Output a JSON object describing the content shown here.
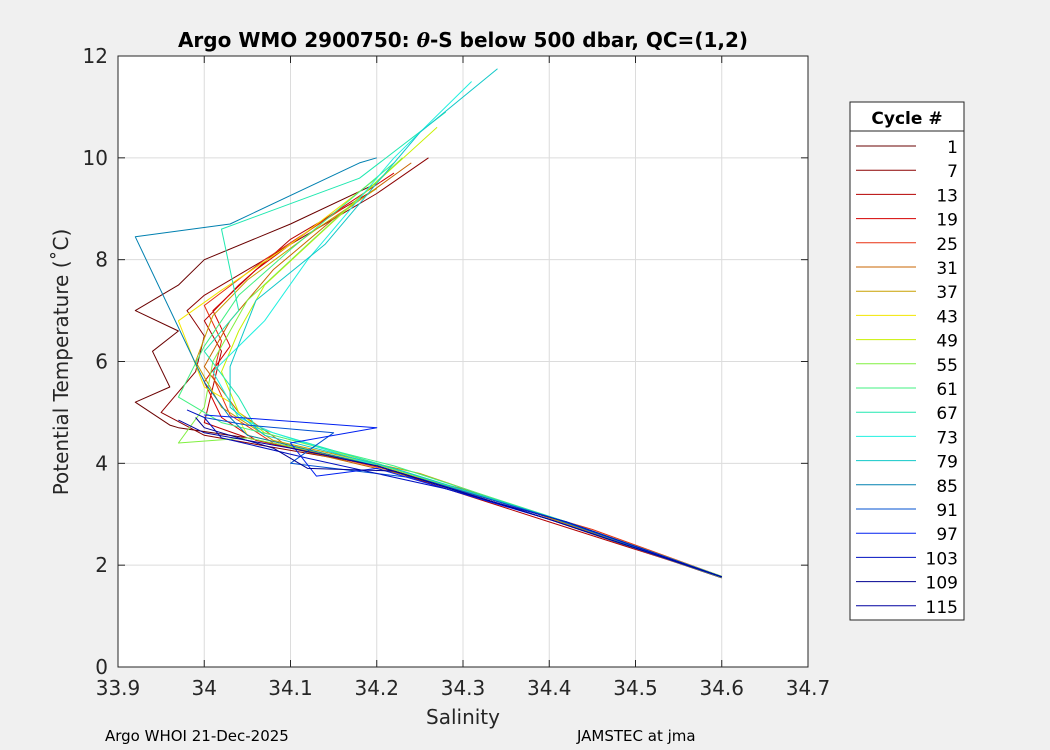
{
  "chart_data": {
    "type": "line",
    "title": "Argo WMO 2900750: θ-S below 500 dbar,  QC=(1,2)",
    "title_prefix": "Argo WMO 2900750: ",
    "title_theta": "θ",
    "title_suffix": "-S below 500 dbar,  QC=(1,2)",
    "xlabel": "Salinity",
    "ylabel": "Potential Temperature (˚C)",
    "xlim": [
      33.9,
      34.7
    ],
    "ylim": [
      0,
      12
    ],
    "xticks": [
      33.9,
      34,
      34.1,
      34.2,
      34.3,
      34.4,
      34.5,
      34.6,
      34.7
    ],
    "xtick_labels": [
      "33.9",
      "34",
      "34.1",
      "34.2",
      "34.3",
      "34.4",
      "34.5",
      "34.6",
      "34.7"
    ],
    "yticks": [
      0,
      2,
      4,
      6,
      8,
      10,
      12
    ],
    "ytick_labels": [
      "0",
      "2",
      "4",
      "6",
      "8",
      "10",
      "12"
    ],
    "grid": true,
    "legend_title": "Cycle #",
    "legend_position": "right-outside",
    "series": [
      {
        "name": "1",
        "color": "#6a0000"
      },
      {
        "name": "7",
        "color": "#8c0000"
      },
      {
        "name": "13",
        "color": "#b50000"
      },
      {
        "name": "19",
        "color": "#d40000"
      },
      {
        "name": "25",
        "color": "#e83010"
      },
      {
        "name": "31",
        "color": "#c86400"
      },
      {
        "name": "37",
        "color": "#c8a000"
      },
      {
        "name": "43",
        "color": "#f2e600"
      },
      {
        "name": "49",
        "color": "#c8f000"
      },
      {
        "name": "55",
        "color": "#80f040"
      },
      {
        "name": "61",
        "color": "#40f080"
      },
      {
        "name": "67",
        "color": "#20e8b0"
      },
      {
        "name": "73",
        "color": "#20f0e0"
      },
      {
        "name": "79",
        "color": "#10c8c8"
      },
      {
        "name": "85",
        "color": "#0080b0"
      },
      {
        "name": "91",
        "color": "#0050d0"
      },
      {
        "name": "97",
        "color": "#0020f0"
      },
      {
        "name": "103",
        "color": "#0010c0"
      },
      {
        "name": "109",
        "color": "#000090"
      },
      {
        "name": "115",
        "color": "#0000a0"
      }
    ],
    "profiles": [
      {
        "series": "1",
        "points": [
          [
            34.6,
            1.75
          ],
          [
            34.4,
            2.9
          ],
          [
            34.2,
            3.95
          ],
          [
            34.05,
            4.5
          ],
          [
            33.97,
            4.7
          ],
          [
            33.96,
            4.75
          ],
          [
            33.92,
            5.2
          ],
          [
            33.96,
            5.5
          ],
          [
            33.94,
            6.2
          ],
          [
            33.97,
            6.6
          ],
          [
            33.92,
            7.0
          ],
          [
            33.97,
            7.5
          ],
          [
            34.0,
            8.0
          ],
          [
            34.1,
            8.7
          ],
          [
            34.2,
            9.5
          ]
        ]
      },
      {
        "series": "7",
        "points": [
          [
            34.6,
            1.76
          ],
          [
            34.4,
            2.9
          ],
          [
            34.2,
            3.96
          ],
          [
            34.0,
            4.55
          ],
          [
            33.95,
            5.0
          ],
          [
            33.99,
            5.8
          ],
          [
            34.0,
            6.5
          ],
          [
            33.98,
            7.0
          ],
          [
            34.0,
            7.3
          ],
          [
            34.05,
            7.8
          ],
          [
            34.12,
            8.5
          ],
          [
            34.2,
            9.3
          ],
          [
            34.26,
            10.0
          ]
        ]
      },
      {
        "series": "13",
        "points": [
          [
            34.6,
            1.77
          ],
          [
            34.4,
            2.85
          ],
          [
            34.2,
            3.94
          ],
          [
            34.05,
            4.5
          ],
          [
            34.0,
            4.8
          ],
          [
            34.01,
            5.5
          ],
          [
            34.02,
            6.2
          ],
          [
            34.0,
            6.8
          ],
          [
            34.04,
            7.5
          ],
          [
            34.1,
            8.4
          ],
          [
            34.2,
            9.4
          ]
        ]
      },
      {
        "series": "19",
        "points": [
          [
            34.6,
            1.77
          ],
          [
            34.42,
            2.85
          ],
          [
            34.2,
            3.95
          ],
          [
            34.06,
            4.45
          ],
          [
            34.02,
            4.9
          ],
          [
            34.0,
            5.6
          ],
          [
            34.03,
            6.3
          ],
          [
            34.01,
            7.0
          ],
          [
            34.06,
            7.8
          ],
          [
            34.14,
            8.8
          ],
          [
            34.22,
            9.7
          ]
        ]
      },
      {
        "series": "25",
        "points": [
          [
            34.6,
            1.78
          ],
          [
            34.45,
            2.7
          ],
          [
            34.22,
            3.85
          ],
          [
            34.08,
            4.4
          ],
          [
            34.03,
            4.95
          ],
          [
            34.01,
            5.7
          ],
          [
            34.02,
            6.4
          ],
          [
            34.0,
            7.1
          ],
          [
            34.07,
            8.0
          ],
          [
            34.16,
            9.0
          ]
        ]
      },
      {
        "series": "31",
        "points": [
          [
            34.6,
            1.76
          ],
          [
            34.5,
            2.35
          ],
          [
            34.3,
            3.5
          ],
          [
            34.1,
            4.3
          ],
          [
            34.04,
            5.0
          ],
          [
            34.0,
            5.9
          ],
          [
            34.03,
            6.8
          ],
          [
            34.08,
            7.8
          ],
          [
            34.15,
            8.8
          ],
          [
            34.24,
            9.9
          ]
        ]
      },
      {
        "series": "37",
        "points": [
          [
            34.6,
            1.78
          ],
          [
            34.45,
            2.65
          ],
          [
            34.25,
            3.8
          ],
          [
            34.08,
            4.45
          ],
          [
            34.02,
            5.1
          ],
          [
            33.99,
            6.0
          ],
          [
            34.01,
            6.9
          ],
          [
            34.05,
            7.6
          ],
          [
            34.13,
            8.6
          ],
          [
            34.2,
            9.4
          ]
        ]
      },
      {
        "series": "43",
        "points": [
          [
            34.6,
            1.77
          ],
          [
            34.4,
            2.9
          ],
          [
            34.2,
            3.95
          ],
          [
            34.05,
            4.55
          ],
          [
            34.03,
            5.2
          ],
          [
            34.0,
            5.5
          ],
          [
            33.97,
            6.8
          ],
          [
            34.02,
            7.4
          ],
          [
            34.1,
            8.3
          ],
          [
            34.2,
            9.6
          ]
        ]
      },
      {
        "series": "49",
        "points": [
          [
            34.6,
            1.76
          ],
          [
            34.4,
            2.95
          ],
          [
            34.2,
            4.0
          ],
          [
            34.07,
            4.6
          ],
          [
            34.04,
            5.0
          ],
          [
            34.02,
            5.8
          ],
          [
            34.04,
            6.6
          ],
          [
            34.07,
            7.5
          ],
          [
            34.14,
            8.6
          ],
          [
            34.27,
            10.6
          ]
        ]
      },
      {
        "series": "55",
        "points": [
          [
            34.6,
            1.77
          ],
          [
            34.4,
            2.95
          ],
          [
            34.2,
            3.98
          ],
          [
            34.05,
            4.5
          ],
          [
            33.97,
            4.4
          ],
          [
            34.0,
            5.1
          ],
          [
            34.01,
            6.0
          ],
          [
            34.05,
            7.2
          ],
          [
            34.12,
            8.3
          ],
          [
            34.23,
            10.0
          ]
        ]
      },
      {
        "series": "61",
        "points": [
          [
            34.6,
            1.78
          ],
          [
            34.42,
            2.85
          ],
          [
            34.22,
            3.95
          ],
          [
            34.08,
            4.55
          ],
          [
            34.02,
            4.8
          ],
          [
            33.97,
            5.3
          ],
          [
            34.0,
            6.3
          ],
          [
            34.04,
            7.3
          ],
          [
            34.1,
            8.2
          ],
          [
            34.22,
            9.9
          ]
        ]
      },
      {
        "series": "67",
        "points": [
          [
            34.6,
            1.77
          ],
          [
            34.4,
            2.95
          ],
          [
            34.2,
            4.0
          ],
          [
            34.06,
            4.7
          ],
          [
            34.04,
            5.3
          ],
          [
            34.0,
            6.2
          ],
          [
            34.04,
            7.0
          ],
          [
            34.02,
            8.6
          ],
          [
            34.18,
            9.6
          ],
          [
            34.28,
            10.9
          ]
        ]
      },
      {
        "series": "73",
        "points": [
          [
            34.6,
            1.76
          ],
          [
            34.4,
            2.9
          ],
          [
            34.2,
            3.95
          ],
          [
            34.08,
            4.6
          ],
          [
            34.04,
            4.9
          ],
          [
            34.01,
            5.8
          ],
          [
            34.07,
            6.8
          ],
          [
            34.12,
            8.0
          ],
          [
            34.22,
            10.0
          ],
          [
            34.31,
            11.5
          ]
        ]
      },
      {
        "series": "79",
        "points": [
          [
            34.6,
            1.77
          ],
          [
            34.42,
            2.85
          ],
          [
            34.22,
            3.9
          ],
          [
            34.07,
            4.55
          ],
          [
            34.03,
            5.1
          ],
          [
            34.03,
            5.9
          ],
          [
            34.06,
            7.2
          ],
          [
            34.14,
            8.3
          ],
          [
            34.25,
            10.5
          ],
          [
            34.34,
            11.75
          ]
        ]
      },
      {
        "series": "85",
        "points": [
          [
            34.6,
            1.77
          ],
          [
            34.4,
            2.9
          ],
          [
            34.2,
            3.95
          ],
          [
            34.05,
            4.55
          ],
          [
            34.03,
            4.9
          ],
          [
            34.0,
            5.6
          ],
          [
            33.92,
            8.45
          ],
          [
            34.03,
            8.7
          ],
          [
            34.18,
            9.9
          ],
          [
            34.2,
            10.0
          ]
        ]
      },
      {
        "series": "91",
        "points": [
          [
            34.6,
            1.77
          ],
          [
            34.4,
            2.95
          ],
          [
            34.25,
            3.7
          ],
          [
            34.1,
            4.0
          ],
          [
            34.15,
            4.6
          ],
          [
            34.05,
            4.75
          ],
          [
            34.0,
            4.9
          ]
        ]
      },
      {
        "series": "97",
        "points": [
          [
            34.6,
            1.77
          ],
          [
            34.4,
            2.9
          ],
          [
            34.2,
            3.9
          ],
          [
            34.13,
            3.75
          ],
          [
            34.1,
            4.4
          ],
          [
            34.2,
            4.7
          ],
          [
            34.0,
            4.95
          ]
        ]
      },
      {
        "series": "103",
        "points": [
          [
            34.6,
            1.77
          ],
          [
            34.42,
            2.85
          ],
          [
            34.28,
            3.5
          ],
          [
            34.12,
            4.1
          ],
          [
            34.02,
            4.5
          ],
          [
            34.0,
            4.9
          ],
          [
            33.98,
            5.05
          ]
        ]
      },
      {
        "series": "109",
        "points": [
          [
            34.6,
            1.77
          ],
          [
            34.4,
            2.9
          ],
          [
            34.22,
            3.85
          ],
          [
            34.12,
            3.9
          ],
          [
            34.08,
            4.3
          ],
          [
            34.0,
            4.7
          ],
          [
            33.99,
            4.9
          ]
        ]
      },
      {
        "series": "115",
        "points": [
          [
            34.6,
            1.77
          ],
          [
            34.4,
            2.9
          ],
          [
            34.2,
            3.95
          ],
          [
            34.1,
            4.3
          ],
          [
            34.0,
            4.6
          ],
          [
            33.97,
            4.85
          ]
        ]
      }
    ]
  },
  "footer": {
    "left": "Argo WHOI 21-Dec-2025",
    "right": "JAMSTEC at jma"
  }
}
